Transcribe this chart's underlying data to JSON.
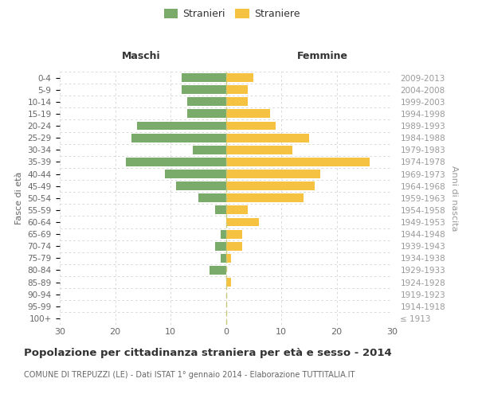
{
  "age_groups": [
    "100+",
    "95-99",
    "90-94",
    "85-89",
    "80-84",
    "75-79",
    "70-74",
    "65-69",
    "60-64",
    "55-59",
    "50-54",
    "45-49",
    "40-44",
    "35-39",
    "30-34",
    "25-29",
    "20-24",
    "15-19",
    "10-14",
    "5-9",
    "0-4"
  ],
  "birth_years": [
    "≤ 1913",
    "1914-1918",
    "1919-1923",
    "1924-1928",
    "1929-1933",
    "1934-1938",
    "1939-1943",
    "1944-1948",
    "1949-1953",
    "1954-1958",
    "1959-1963",
    "1964-1968",
    "1969-1973",
    "1974-1978",
    "1979-1983",
    "1984-1988",
    "1989-1993",
    "1994-1998",
    "1999-2003",
    "2004-2008",
    "2009-2013"
  ],
  "maschi": [
    0,
    0,
    0,
    0,
    3,
    1,
    2,
    1,
    0,
    2,
    5,
    9,
    11,
    18,
    6,
    17,
    16,
    7,
    7,
    8,
    8
  ],
  "femmine": [
    0,
    0,
    0,
    1,
    0,
    1,
    3,
    3,
    6,
    4,
    14,
    16,
    17,
    26,
    12,
    15,
    9,
    8,
    4,
    4,
    5
  ],
  "maschi_color": "#7aab6a",
  "femmine_color": "#f5c242",
  "title": "Popolazione per cittadinanza straniera per età e sesso - 2014",
  "subtitle": "COMUNE DI TREPUZZI (LE) - Dati ISTAT 1° gennaio 2014 - Elaborazione TUTTITALIA.IT",
  "legend_maschi": "Stranieri",
  "legend_femmine": "Straniere",
  "header_left": "Maschi",
  "header_right": "Femmine",
  "ylabel_left": "Fasce di età",
  "ylabel_right": "Anni di nascita",
  "xlim": 30,
  "xticks": [
    -30,
    -20,
    -10,
    0,
    10,
    20,
    30
  ],
  "xtick_labels": [
    "30",
    "20",
    "10",
    "0",
    "10",
    "20",
    "30"
  ],
  "background_color": "#ffffff",
  "grid_color": "#cccccc",
  "center_line_color": "#aaaaaa",
  "text_color_dark": "#333333",
  "text_color_mid": "#666666",
  "text_color_light": "#999999"
}
